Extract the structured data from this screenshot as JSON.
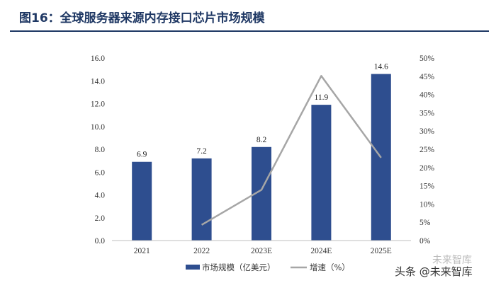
{
  "figure": {
    "title": "图16：全球服务器来源内存接口芯片市场规模"
  },
  "watermark": {
    "text": "头条 @未来智库",
    "faint_text": "未来智库"
  },
  "colors": {
    "title": "#1f3864",
    "bar": "#2e4e8f",
    "line": "#a6a6a6",
    "rule": "#1f3864"
  },
  "chart_data": {
    "type": "bar",
    "categories": [
      "2021",
      "2022",
      "2023E",
      "2024E",
      "2025E"
    ],
    "series": [
      {
        "name": "市场规模（亿美元）",
        "type": "bar",
        "axis": "left",
        "values": [
          6.9,
          7.2,
          8.2,
          11.9,
          14.6
        ],
        "data_labels": [
          "6.9",
          "7.2",
          "8.2",
          "11.9",
          "14.6"
        ]
      },
      {
        "name": "增速（%）",
        "type": "line",
        "axis": "right",
        "values": [
          null,
          4.3,
          13.9,
          45.1,
          22.7
        ]
      }
    ],
    "y_left": {
      "lim": [
        0,
        16
      ],
      "ticks": [
        "0.0",
        "2.0",
        "4.0",
        "6.0",
        "8.0",
        "10.0",
        "12.0",
        "14.0",
        "16.0"
      ]
    },
    "y_right": {
      "lim": [
        0,
        50
      ],
      "ticks": [
        "0%",
        "5%",
        "10%",
        "15%",
        "20%",
        "25%",
        "30%",
        "35%",
        "40%",
        "45%",
        "50%"
      ]
    },
    "grid": false,
    "legend": "bottom"
  }
}
